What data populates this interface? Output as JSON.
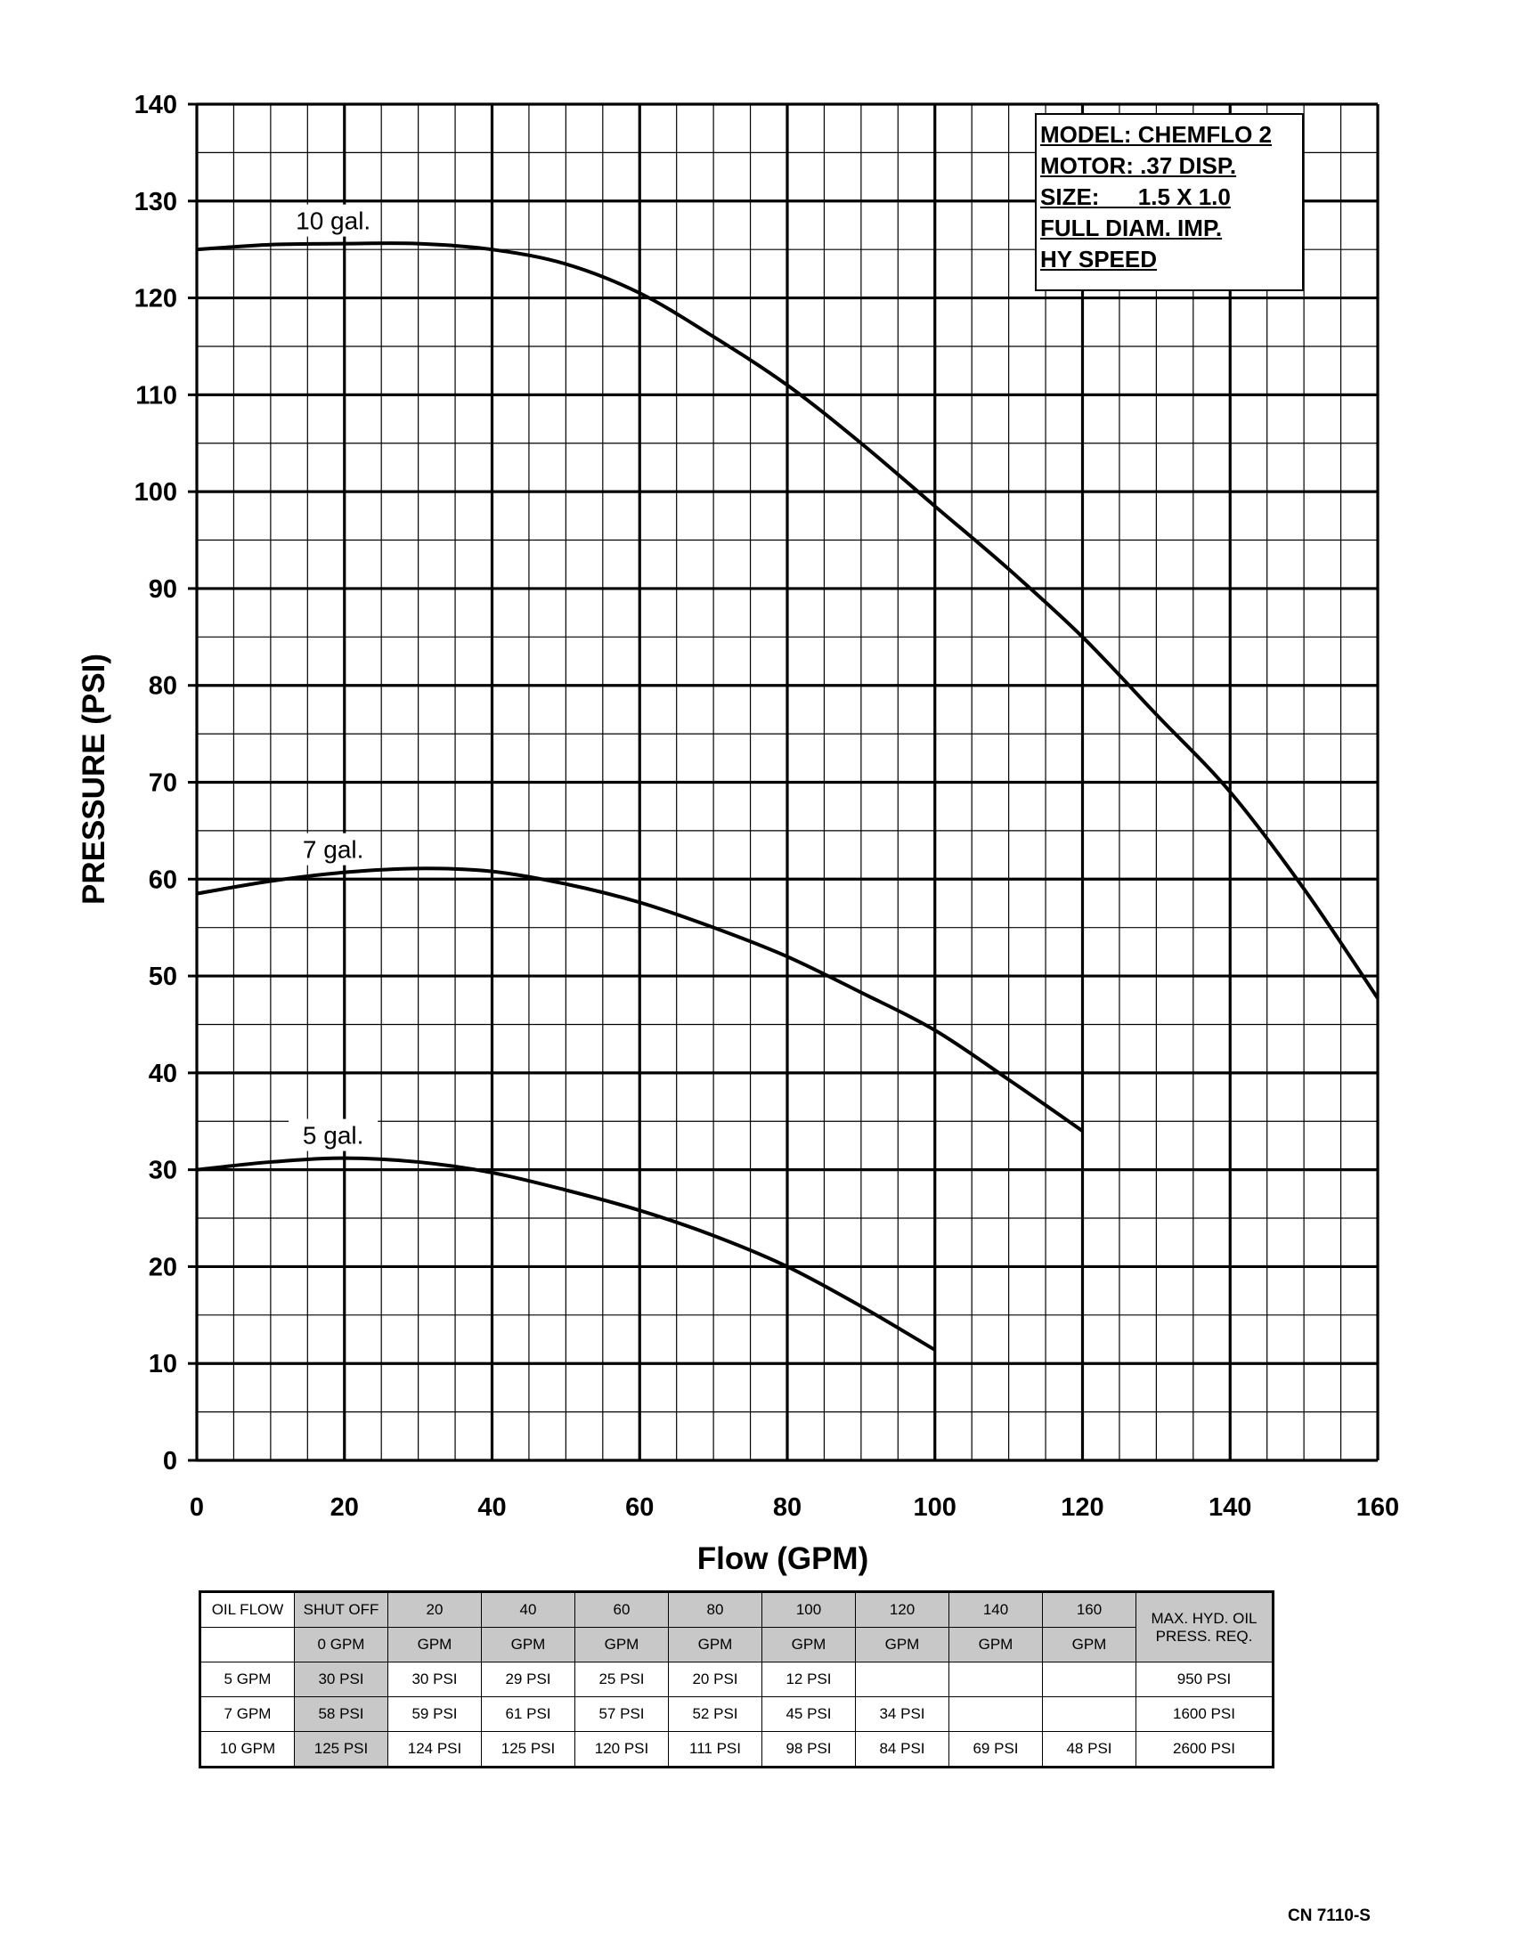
{
  "chart_data": {
    "type": "line",
    "xlabel": "Flow (GPM)",
    "ylabel": "PRESSURE (PSI)",
    "xlim": [
      0,
      160
    ],
    "ylim": [
      0,
      140
    ],
    "x_ticks": [
      "0",
      "20",
      "40",
      "60",
      "80",
      "100",
      "120",
      "140",
      "160"
    ],
    "y_ticks": [
      "0",
      "10",
      "20",
      "30",
      "40",
      "50",
      "60",
      "70",
      "80",
      "90",
      "100",
      "110",
      "120",
      "130",
      "140"
    ],
    "grid": true,
    "series": [
      {
        "name": "10 gal.",
        "x": [
          0,
          10,
          20,
          30,
          40,
          50,
          60,
          70,
          80,
          90,
          100,
          110,
          120,
          130,
          140,
          150,
          160
        ],
        "y": [
          125,
          125.5,
          125.6,
          125.6,
          125,
          123.5,
          120.5,
          116,
          111,
          105,
          98.5,
          92,
          85,
          77,
          69,
          59,
          47.7
        ]
      },
      {
        "name": "7 gal.",
        "x": [
          0,
          10,
          20,
          30,
          40,
          50,
          60,
          70,
          80,
          90,
          100,
          110,
          120
        ],
        "y": [
          58.5,
          59.8,
          60.7,
          61.1,
          60.8,
          59.5,
          57.6,
          55,
          52,
          48.3,
          44.4,
          39.3,
          34
        ]
      },
      {
        "name": "5 gal.",
        "x": [
          0,
          10,
          20,
          30,
          40,
          50,
          60,
          70,
          80,
          90,
          100
        ],
        "y": [
          30,
          30.8,
          31.2,
          30.8,
          29.7,
          27.9,
          25.8,
          23.2,
          20,
          15.9,
          11.4
        ]
      }
    ]
  },
  "model_box": {
    "lines": [
      "MODEL: CHEMFLO 2",
      "MOTOR: .37 DISP.",
      "SIZE:      1.5 X 1.0",
      "FULL DIAM. IMP.",
      "HY SPEED"
    ]
  },
  "table": {
    "header_row1": [
      "OIL FLOW",
      "SHUT OFF",
      "20",
      "40",
      "60",
      "80",
      "100",
      "120",
      "140",
      "160"
    ],
    "header_row2": [
      "",
      "0 GPM",
      "GPM",
      "GPM",
      "GPM",
      "GPM",
      "GPM",
      "GPM",
      "GPM",
      "GPM"
    ],
    "max_header": "MAX. HYD. OIL PRESS. REQ.",
    "rows": [
      [
        "5 GPM",
        "30 PSI",
        "30 PSI",
        "29 PSI",
        "25 PSI",
        "20 PSI",
        "12 PSI",
        "",
        "",
        "",
        "950 PSI"
      ],
      [
        "7 GPM",
        "58 PSI",
        "59 PSI",
        "61 PSI",
        "57 PSI",
        "52 PSI",
        "45 PSI",
        "34 PSI",
        "",
        "",
        "1600 PSI"
      ],
      [
        "10 GPM",
        "125 PSI",
        "124 PSI",
        "125 PSI",
        "120 PSI",
        "111 PSI",
        "98 PSI",
        "84 PSI",
        "69 PSI",
        "48 PSI",
        "2600 PSI"
      ]
    ]
  },
  "footer": "CN 7110-S"
}
